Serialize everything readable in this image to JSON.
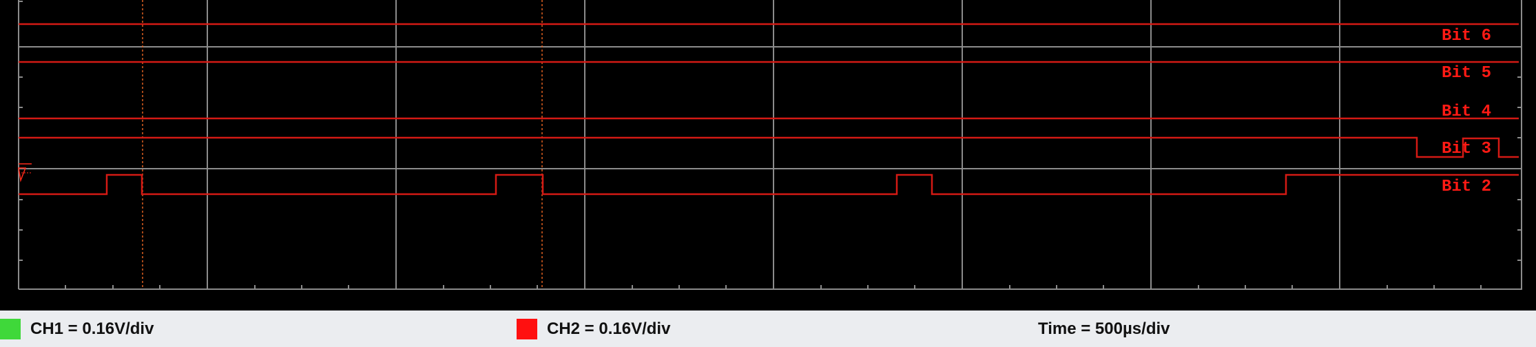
{
  "colors": {
    "trace": "#d41a14",
    "label": "#ff1a14",
    "grid": "#8c8c8c",
    "ch1_swatch": "#3fd83a",
    "ch2_swatch": "#ff1010",
    "status_bg": "#ebedf0"
  },
  "traces": [
    {
      "id": "bit6",
      "label": "Bit 6"
    },
    {
      "id": "bit5",
      "label": "Bit 5"
    },
    {
      "id": "bit4",
      "label": "Bit 4"
    },
    {
      "id": "bit3",
      "label": "Bit 3"
    },
    {
      "id": "bit2",
      "label": "Bit 2"
    }
  ],
  "status": {
    "ch1": "CH1 = 0.16V/div",
    "ch2": "CH2 = 0.16V/div",
    "time": "Time = 500µs/div"
  }
}
